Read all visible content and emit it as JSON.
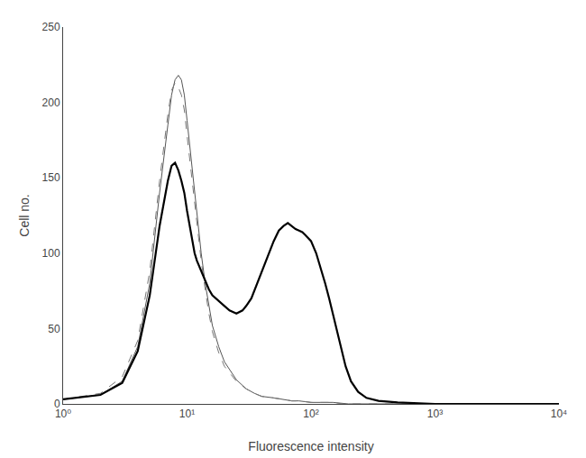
{
  "chart_data": {
    "type": "line",
    "xlabel": "Fluorescence intensity",
    "ylabel": "Cell no.",
    "log": "x",
    "xlim": [
      1,
      10000
    ],
    "xticks": [
      {
        "value": 1,
        "label": "10⁰"
      },
      {
        "value": 10,
        "label": "10¹"
      },
      {
        "value": 100,
        "label": "10²"
      },
      {
        "value": 1000,
        "label": "10³"
      },
      {
        "value": 10000,
        "label": "10⁴"
      }
    ],
    "ylim": [
      0,
      250
    ],
    "yticks": [
      0,
      50,
      100,
      150,
      200,
      250
    ],
    "grid": false,
    "series": [
      {
        "color": "#555555",
        "line_style": "solid",
        "x": [
          1.0,
          2.0,
          3.0,
          4.0,
          5.0,
          6.0,
          7.0,
          7.5,
          8.0,
          8.5,
          9.0,
          9.5,
          10.0,
          11.0,
          12.0,
          13.0,
          14.0,
          15.0,
          16.0,
          18.0,
          20.0,
          25.0,
          30.0,
          35.0,
          40.0,
          50.0,
          60.0,
          70.0,
          80.0,
          100.0,
          120.0,
          150.0,
          200.0,
          300.0,
          500.0,
          1000.0,
          10000.0
        ],
        "values": [
          3,
          6,
          15,
          38,
          80,
          140,
          185,
          205,
          215,
          218,
          215,
          205,
          188,
          155,
          125,
          100,
          80,
          65,
          52,
          38,
          28,
          16,
          10,
          7,
          5,
          4,
          3,
          2,
          2,
          1,
          1,
          1,
          0,
          0,
          0,
          0,
          0
        ]
      },
      {
        "color": "#777777",
        "line_style": "dashed",
        "x": [
          1.0,
          2.0,
          3.0,
          4.0,
          5.0,
          6.0,
          7.0,
          7.5,
          8.0,
          8.5,
          9.0,
          9.5,
          10.0,
          11.0,
          12.0,
          13.0,
          14.0,
          15.0,
          16.0,
          18.0,
          20.0,
          25.0,
          30.0,
          35.0,
          40.0,
          50.0,
          60.0,
          70.0,
          80.0,
          100.0,
          120.0,
          150.0,
          180.0,
          220.0,
          300.0,
          500.0,
          1000.0,
          10000.0
        ],
        "values": [
          3,
          7,
          18,
          42,
          88,
          148,
          192,
          208,
          213,
          210,
          205,
          195,
          178,
          148,
          118,
          95,
          76,
          60,
          48,
          34,
          25,
          15,
          10,
          7,
          5,
          4,
          3,
          2,
          2,
          1,
          1,
          1,
          0,
          0,
          0,
          0,
          0,
          0
        ]
      },
      {
        "color": "#000000",
        "line_style": "solid",
        "x": [
          1.0,
          2.0,
          3.0,
          4.0,
          5.0,
          6.0,
          7.0,
          7.5,
          8.0,
          8.5,
          9.0,
          9.5,
          10.0,
          10.5,
          11.0,
          11.5,
          12.0,
          13.0,
          14.0,
          15.0,
          16.0,
          18.0,
          20.0,
          22.0,
          25.0,
          28.0,
          30.0,
          33.0,
          36.0,
          40.0,
          45.0,
          50.0,
          55.0,
          60.0,
          65.0,
          70.0,
          75.0,
          80.0,
          85.0,
          90.0,
          95.0,
          100.0,
          110.0,
          120.0,
          130.0,
          140.0,
          150.0,
          160.0,
          175.0,
          190.0,
          210.0,
          240.0,
          280.0,
          350.0,
          500.0,
          1000.0,
          10000.0
        ],
        "values": [
          3,
          6,
          14,
          35,
          72,
          118,
          148,
          158,
          160,
          155,
          148,
          140,
          128,
          118,
          108,
          100,
          95,
          88,
          82,
          76,
          72,
          68,
          65,
          62,
          60,
          62,
          65,
          70,
          78,
          88,
          98,
          108,
          115,
          118,
          120,
          118,
          116,
          115,
          114,
          112,
          110,
          108,
          100,
          90,
          80,
          70,
          60,
          50,
          38,
          25,
          15,
          8,
          4,
          2,
          1,
          0,
          0
        ]
      }
    ]
  }
}
